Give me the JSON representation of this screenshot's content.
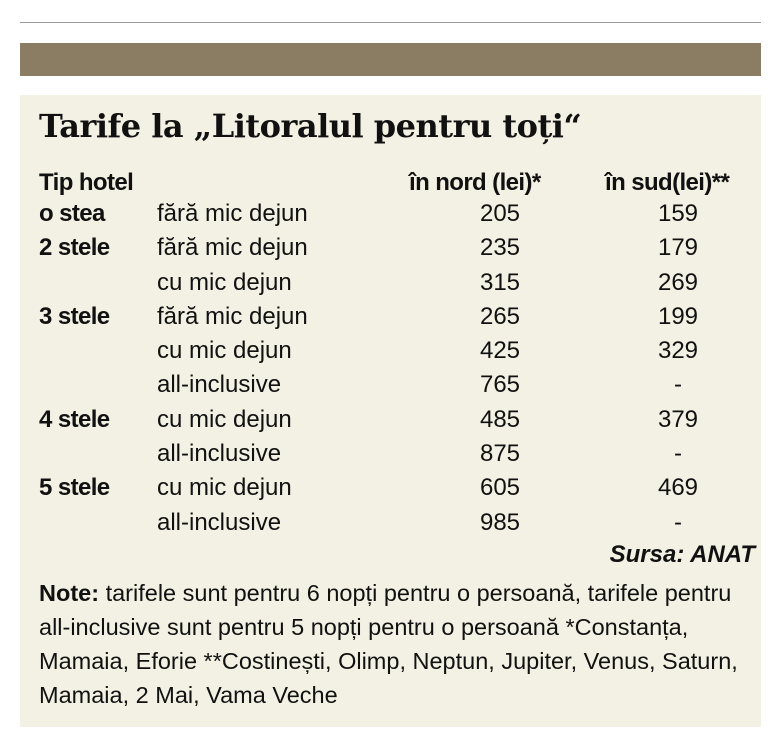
{
  "title": "Tarife la „Litoralul pentru toți“",
  "columns": {
    "type": "Tip hotel",
    "nord": "în nord (lei)*",
    "sud": "în sud(lei)**"
  },
  "rows": [
    {
      "type": "o stea",
      "meal": "fără mic dejun",
      "nord": "205",
      "sud": "159"
    },
    {
      "type": "2 stele",
      "meal": "fără mic dejun",
      "nord": "235",
      "sud": "179"
    },
    {
      "type": "",
      "meal": "cu mic dejun",
      "nord": "315",
      "sud": "269"
    },
    {
      "type": "3 stele",
      "meal": "fără mic dejun",
      "nord": "265",
      "sud": "199"
    },
    {
      "type": "",
      "meal": "cu mic dejun",
      "nord": "425",
      "sud": "329"
    },
    {
      "type": "",
      "meal": "all-inclusive",
      "nord": "765",
      "sud": "-"
    },
    {
      "type": "4 stele",
      "meal": "cu mic dejun",
      "nord": "485",
      "sud": "379"
    },
    {
      "type": "",
      "meal": "all-inclusive",
      "nord": "875",
      "sud": "-"
    },
    {
      "type": "5 stele",
      "meal": "cu mic dejun",
      "nord": "605",
      "sud": "469"
    },
    {
      "type": "",
      "meal": "all-inclusive",
      "nord": "985",
      "sud": "-"
    }
  ],
  "source": "Sursa: ANAT",
  "notes": {
    "label": "Note:",
    "text": " tarifele sunt pentru 6 nopți pentru o persoană, tarifele pentru all-inclusive sunt pentru 5 nopți pentru o persoană *Constanța, Mamaia, Eforie **Costinești, Olimp, Neptun, Jupiter, Venus, Saturn, Mamaia, 2 Mai, Vama Veche"
  },
  "colors": {
    "brand_bar": "#8b7d63",
    "panel_bg": "#f3f1e3",
    "rule": "#9a9a9a",
    "text": "#111111"
  }
}
